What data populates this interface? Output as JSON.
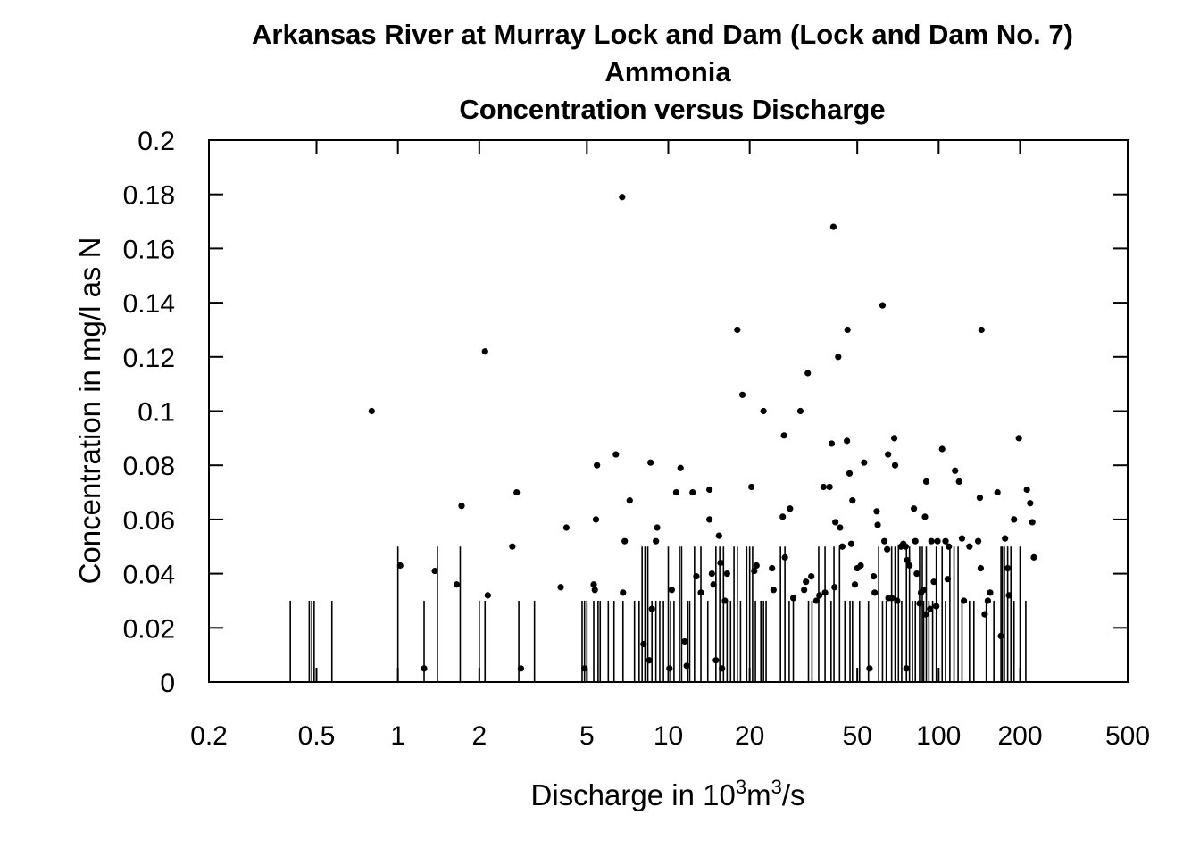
{
  "chart_data": {
    "type": "scatter",
    "title": [
      "Arkansas River at Murray Lock and Dam (Lock and Dam No. 7)",
      "Ammonia",
      "Concentration versus Discharge"
    ],
    "xlabel": {
      "prefix": "Discharge in 10",
      "exp1": "3",
      "unit": "m",
      "exp2": "3",
      "suffix": "/s"
    },
    "ylabel": "Concentration in mg/l as N",
    "x_scale": "log",
    "xlim": [
      0.2,
      500
    ],
    "ylim": [
      0,
      0.2
    ],
    "x_ticks": [
      0.2,
      0.5,
      1,
      2,
      5,
      10,
      20,
      50,
      100,
      200,
      500
    ],
    "x_tick_labels": [
      "0.2",
      "0.5",
      "1",
      "2",
      "5",
      "10",
      "20",
      "50",
      "100",
      "200",
      "500"
    ],
    "y_ticks": [
      0,
      0.02,
      0.04,
      0.06,
      0.08,
      0.1,
      0.12,
      0.14,
      0.16,
      0.18,
      0.2
    ],
    "y_tick_labels": [
      "0",
      "0.02",
      "0.04",
      "0.06",
      "0.08",
      "0.1",
      "0.12",
      "0.14",
      "0.16",
      "0.18",
      "0.2"
    ],
    "grid": false,
    "legend": "none",
    "marker_color": "#000000",
    "series": [
      {
        "style": "censored (less-than) values drawn as vertical lines from zero",
        "points": [
          [
            0.4,
            0.03
          ],
          [
            0.47,
            0.03
          ],
          [
            0.48,
            0.03
          ],
          [
            0.49,
            0.03
          ],
          [
            0.57,
            0.03
          ],
          [
            1.0,
            0.05
          ],
          [
            1.25,
            0.03
          ],
          [
            1.4,
            0.05
          ],
          [
            1.7,
            0.05
          ],
          [
            2.0,
            0.03
          ],
          [
            2.1,
            0.03
          ],
          [
            2.8,
            0.03
          ],
          [
            3.2,
            0.03
          ],
          [
            4.8,
            0.03
          ],
          [
            4.9,
            0.03
          ],
          [
            5.0,
            0.03
          ],
          [
            5.3,
            0.03
          ],
          [
            5.5,
            0.03
          ],
          [
            5.6,
            0.03
          ],
          [
            6.0,
            0.03
          ],
          [
            6.3,
            0.03
          ],
          [
            6.8,
            0.03
          ],
          [
            7.5,
            0.03
          ],
          [
            7.8,
            0.03
          ],
          [
            8.0,
            0.05
          ],
          [
            8.2,
            0.05
          ],
          [
            8.4,
            0.05
          ],
          [
            8.7,
            0.03
          ],
          [
            9.0,
            0.03
          ],
          [
            9.3,
            0.03
          ],
          [
            9.6,
            0.03
          ],
          [
            10.0,
            0.05
          ],
          [
            10.2,
            0.03
          ],
          [
            10.5,
            0.03
          ],
          [
            11.0,
            0.05
          ],
          [
            11.2,
            0.05
          ],
          [
            11.8,
            0.03
          ],
          [
            12.0,
            0.03
          ],
          [
            12.5,
            0.05
          ],
          [
            13.2,
            0.05
          ],
          [
            14.0,
            0.03
          ],
          [
            15.0,
            0.05
          ],
          [
            15.5,
            0.05
          ],
          [
            16.0,
            0.05
          ],
          [
            16.5,
            0.03
          ],
          [
            17.0,
            0.03
          ],
          [
            17.5,
            0.05
          ],
          [
            18.0,
            0.05
          ],
          [
            18.5,
            0.03
          ],
          [
            19.5,
            0.05
          ],
          [
            20.0,
            0.05
          ],
          [
            20.5,
            0.05
          ],
          [
            21.0,
            0.03
          ],
          [
            22.0,
            0.03
          ],
          [
            22.5,
            0.03
          ],
          [
            23.0,
            0.03
          ],
          [
            26.0,
            0.05
          ],
          [
            27.0,
            0.05
          ],
          [
            28.0,
            0.03
          ],
          [
            29.0,
            0.03
          ],
          [
            33.0,
            0.03
          ],
          [
            34.0,
            0.03
          ],
          [
            36.0,
            0.05
          ],
          [
            38.0,
            0.05
          ],
          [
            40.0,
            0.03
          ],
          [
            41.0,
            0.05
          ],
          [
            43.0,
            0.05
          ],
          [
            45.0,
            0.03
          ],
          [
            47.0,
            0.03
          ],
          [
            48.0,
            0.03
          ],
          [
            51.0,
            0.03
          ],
          [
            55.0,
            0.03
          ],
          [
            60.0,
            0.05
          ],
          [
            62.0,
            0.03
          ],
          [
            64.0,
            0.03
          ],
          [
            67.0,
            0.05
          ],
          [
            69.0,
            0.05
          ],
          [
            71.0,
            0.05
          ],
          [
            73.0,
            0.03
          ],
          [
            76.0,
            0.05
          ],
          [
            78.0,
            0.05
          ],
          [
            80.0,
            0.03
          ],
          [
            82.0,
            0.03
          ],
          [
            85.0,
            0.05
          ],
          [
            87.0,
            0.05
          ],
          [
            88.0,
            0.03
          ],
          [
            90.0,
            0.05
          ],
          [
            92.0,
            0.03
          ],
          [
            95.0,
            0.03
          ],
          [
            98.0,
            0.05
          ],
          [
            103.0,
            0.05
          ],
          [
            106.0,
            0.03
          ],
          [
            110.0,
            0.05
          ],
          [
            114.0,
            0.05
          ],
          [
            118.0,
            0.05
          ],
          [
            122.0,
            0.03
          ],
          [
            130.0,
            0.03
          ],
          [
            135.0,
            0.03
          ],
          [
            150.0,
            0.03
          ],
          [
            160.0,
            0.03
          ],
          [
            170.0,
            0.05
          ],
          [
            172.0,
            0.05
          ],
          [
            175.0,
            0.05
          ],
          [
            180.0,
            0.05
          ],
          [
            185.0,
            0.05
          ],
          [
            190.0,
            0.03
          ],
          [
            200.0,
            0.05
          ],
          [
            210.0,
            0.03
          ]
        ]
      },
      {
        "style": "detected values drawn as dots",
        "points": [
          [
            0.8,
            0.1
          ],
          [
            1.02,
            0.043
          ],
          [
            1.25,
            0.005
          ],
          [
            1.37,
            0.041
          ],
          [
            1.65,
            0.036
          ],
          [
            1.72,
            0.065
          ],
          [
            2.1,
            0.122
          ],
          [
            2.15,
            0.032
          ],
          [
            2.65,
            0.05
          ],
          [
            2.75,
            0.07
          ],
          [
            2.85,
            0.005
          ],
          [
            4.0,
            0.035
          ],
          [
            4.2,
            0.057
          ],
          [
            4.9,
            0.005
          ],
          [
            5.3,
            0.036
          ],
          [
            5.35,
            0.034
          ],
          [
            5.4,
            0.06
          ],
          [
            5.45,
            0.08
          ],
          [
            6.4,
            0.084
          ],
          [
            6.75,
            0.179
          ],
          [
            6.8,
            0.033
          ],
          [
            6.9,
            0.052
          ],
          [
            7.2,
            0.067
          ],
          [
            8.1,
            0.014
          ],
          [
            8.5,
            0.008
          ],
          [
            8.6,
            0.081
          ],
          [
            8.7,
            0.027
          ],
          [
            9.0,
            0.052
          ],
          [
            9.1,
            0.057
          ],
          [
            10.1,
            0.005
          ],
          [
            10.3,
            0.034
          ],
          [
            10.7,
            0.07
          ],
          [
            11.1,
            0.079
          ],
          [
            11.5,
            0.015
          ],
          [
            11.7,
            0.006
          ],
          [
            12.3,
            0.07
          ],
          [
            12.7,
            0.039
          ],
          [
            13.2,
            0.033
          ],
          [
            14.2,
            0.071
          ],
          [
            14.2,
            0.06
          ],
          [
            14.5,
            0.04
          ],
          [
            14.7,
            0.036
          ],
          [
            15.0,
            0.008
          ],
          [
            15.4,
            0.054
          ],
          [
            15.6,
            0.044
          ],
          [
            15.8,
            0.005
          ],
          [
            16.2,
            0.03
          ],
          [
            16.5,
            0.04
          ],
          [
            18.0,
            0.13
          ],
          [
            18.8,
            0.106
          ],
          [
            20.3,
            0.072
          ],
          [
            20.8,
            0.041
          ],
          [
            21.2,
            0.043
          ],
          [
            22.5,
            0.1
          ],
          [
            24.2,
            0.042
          ],
          [
            24.5,
            0.034
          ],
          [
            26.5,
            0.061
          ],
          [
            26.8,
            0.091
          ],
          [
            27.0,
            0.046
          ],
          [
            28.2,
            0.064
          ],
          [
            29.0,
            0.031
          ],
          [
            30.8,
            0.1
          ],
          [
            31.8,
            0.034
          ],
          [
            32.3,
            0.037
          ],
          [
            32.8,
            0.114
          ],
          [
            33.8,
            0.039
          ],
          [
            35.3,
            0.03
          ],
          [
            36.2,
            0.032
          ],
          [
            37.5,
            0.072
          ],
          [
            38.0,
            0.033
          ],
          [
            39.5,
            0.072
          ],
          [
            40.2,
            0.088
          ],
          [
            40.8,
            0.168
          ],
          [
            41.2,
            0.035
          ],
          [
            41.5,
            0.059
          ],
          [
            42.5,
            0.12
          ],
          [
            43.2,
            0.057
          ],
          [
            44.0,
            0.05
          ],
          [
            45.8,
            0.089
          ],
          [
            46.0,
            0.13
          ],
          [
            46.8,
            0.077
          ],
          [
            47.5,
            0.051
          ],
          [
            48.0,
            0.067
          ],
          [
            49.0,
            0.036
          ],
          [
            50.0,
            0.042
          ],
          [
            51.5,
            0.043
          ],
          [
            53.0,
            0.081
          ],
          [
            55.5,
            0.005
          ],
          [
            57.5,
            0.039
          ],
          [
            58.0,
            0.033
          ],
          [
            59.0,
            0.063
          ],
          [
            59.5,
            0.058
          ],
          [
            62.0,
            0.139
          ],
          [
            63.0,
            0.052
          ],
          [
            64.5,
            0.049
          ],
          [
            65.0,
            0.084
          ],
          [
            65.2,
            0.031
          ],
          [
            67.0,
            0.031
          ],
          [
            68.5,
            0.09
          ],
          [
            69.0,
            0.08
          ],
          [
            70.2,
            0.03
          ],
          [
            72.5,
            0.05
          ],
          [
            74.0,
            0.051
          ],
          [
            75.5,
            0.05
          ],
          [
            76.0,
            0.005
          ],
          [
            76.5,
            0.045
          ],
          [
            78.0,
            0.043
          ],
          [
            81.0,
            0.064
          ],
          [
            82.0,
            0.052
          ],
          [
            83.0,
            0.04
          ],
          [
            85.0,
            0.029
          ],
          [
            86.0,
            0.033
          ],
          [
            88.0,
            0.034
          ],
          [
            89.0,
            0.061
          ],
          [
            89.5,
            0.025
          ],
          [
            90.0,
            0.074
          ],
          [
            93.0,
            0.027
          ],
          [
            94.0,
            0.052
          ],
          [
            96.0,
            0.037
          ],
          [
            98.0,
            0.028
          ],
          [
            99.0,
            0.052
          ],
          [
            103.0,
            0.086
          ],
          [
            106.0,
            0.052
          ],
          [
            108.0,
            0.038
          ],
          [
            109.0,
            0.05
          ],
          [
            115.0,
            0.078
          ],
          [
            119.0,
            0.074
          ],
          [
            122.0,
            0.053
          ],
          [
            124.0,
            0.03
          ],
          [
            130.0,
            0.05
          ],
          [
            140.0,
            0.052
          ],
          [
            142.0,
            0.068
          ],
          [
            143.0,
            0.042
          ],
          [
            144.0,
            0.13
          ],
          [
            148.0,
            0.025
          ],
          [
            152.0,
            0.03
          ],
          [
            155.0,
            0.033
          ],
          [
            165.0,
            0.07
          ],
          [
            170.0,
            0.017
          ],
          [
            176.0,
            0.053
          ],
          [
            180.0,
            0.042
          ],
          [
            182.0,
            0.032
          ],
          [
            190.0,
            0.06
          ],
          [
            198.0,
            0.09
          ],
          [
            212.0,
            0.071
          ],
          [
            218.0,
            0.066
          ],
          [
            222.0,
            0.059
          ],
          [
            225.0,
            0.046
          ]
        ]
      }
    ]
  }
}
